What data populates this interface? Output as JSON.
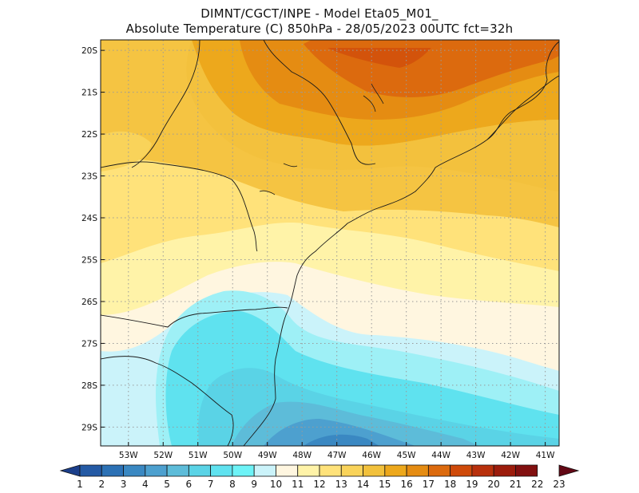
{
  "header": {
    "line1": "DIMNT/CGCT/INPE -  Model Eta05_M01_",
    "line2": "Absolute Temperature (C) 850hPa -  28/05/2023 00UTC fct=32h"
  },
  "map": {
    "lon_range": [
      -53.8,
      -40.6
    ],
    "lat_range": [
      -29.45,
      -19.75
    ],
    "lat_ticks": [
      "20S",
      "21S",
      "22S",
      "23S",
      "24S",
      "25S",
      "26S",
      "27S",
      "28S",
      "29S"
    ],
    "lon_ticks": [
      "53W",
      "52W",
      "51W",
      "50W",
      "49W",
      "48W",
      "47W",
      "46W",
      "45W",
      "44W",
      "43W",
      "42W",
      "41W"
    ],
    "lat_tick_values": [
      -20,
      -21,
      -22,
      -23,
      -24,
      -25,
      -26,
      -27,
      -28,
      -29
    ],
    "lon_tick_values": [
      -53,
      -52,
      -51,
      -50,
      -49,
      -48,
      -47,
      -46,
      -45,
      -44,
      -43,
      -42,
      -41
    ]
  },
  "colorbar": {
    "labels": [
      "1",
      "2",
      "3",
      "4",
      "5",
      "6",
      "7",
      "8",
      "9",
      "10",
      "11",
      "12",
      "13",
      "14",
      "15",
      "16",
      "17",
      "18",
      "19",
      "20",
      "21",
      "22",
      "23"
    ],
    "colors": [
      "#1b3f8b",
      "#245aa5",
      "#2c71b5",
      "#3a88c2",
      "#4da0cf",
      "#5dbcd9",
      "#5ad3e6",
      "#5fe2ef",
      "#6df3f7",
      "#cbf3fa",
      "#fff6e0",
      "#fff3a8",
      "#ffe27a",
      "#f9d35a",
      "#f2c13c",
      "#eda81c",
      "#e58c12",
      "#dc6a0e",
      "#cf4a0a",
      "#b8300c",
      "#9c1c0c",
      "#821010",
      "#630815"
    ]
  }
}
